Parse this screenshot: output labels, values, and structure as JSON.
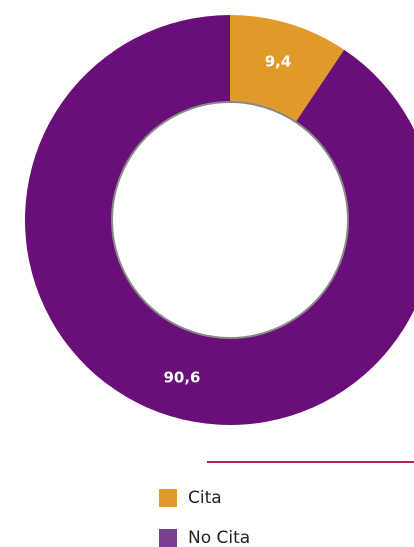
{
  "chart_data": {
    "type": "pie",
    "categories": [
      "Cita",
      "No Cita"
    ],
    "values": [
      9.4,
      90.6
    ],
    "value_labels": [
      "9,4",
      "90,6"
    ],
    "colors": [
      "#e09a2a",
      "#6a0f7a"
    ],
    "legend_colors": [
      "#e09a2a",
      "#7b3f8f"
    ]
  }
}
